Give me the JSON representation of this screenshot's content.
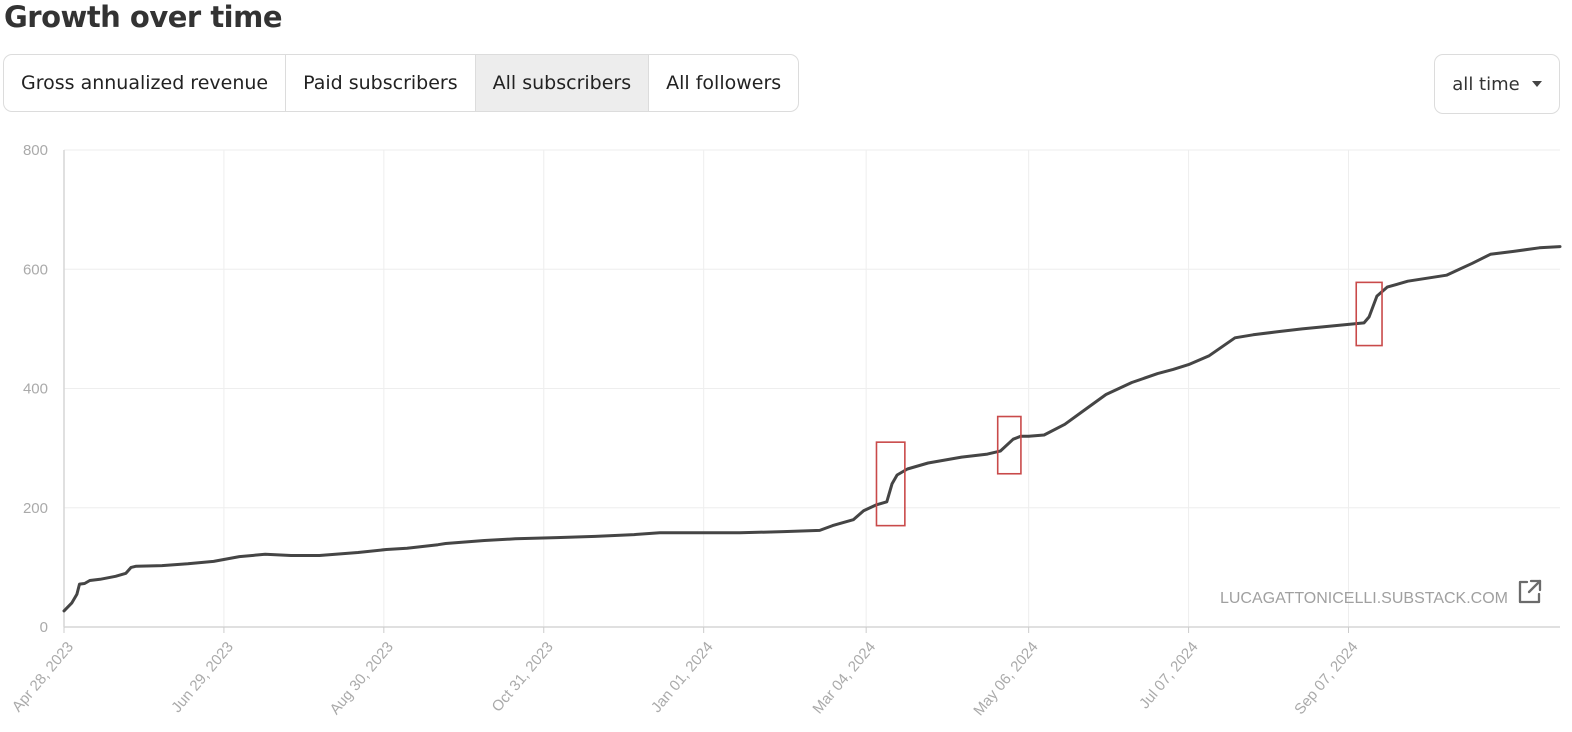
{
  "page": {
    "title": "Growth over time"
  },
  "tabs": [
    {
      "label": "Gross annualized revenue",
      "active": false
    },
    {
      "label": "Paid subscribers",
      "active": false
    },
    {
      "label": "All subscribers",
      "active": true
    },
    {
      "label": "All followers",
      "active": false
    }
  ],
  "range_select": {
    "value": "all time",
    "icon": "caret-down-icon"
  },
  "watermark": {
    "text": "LUCAGATTONICELLI.SUBSTACK.COM",
    "icon": "external-link-icon"
  },
  "colors": {
    "line": "#454545",
    "highlight": "#c94a4a",
    "grid": "#eeeeee",
    "tick_text": "#aaaaaa"
  },
  "chart_data": {
    "type": "line",
    "title": "",
    "xlabel": "",
    "ylabel": "",
    "ylim": [
      0,
      800
    ],
    "yticks": [
      0,
      200,
      400,
      600,
      800
    ],
    "xlim": [
      "2023-04-28",
      "2024-11-28"
    ],
    "xticks": [
      "2023-04-28",
      "2023-06-29",
      "2023-08-30",
      "2023-10-31",
      "2024-01-01",
      "2024-03-04",
      "2024-05-06",
      "2024-07-07",
      "2024-09-07"
    ],
    "xtick_labels": [
      "Apr 28, 2023",
      "Jun 29, 2023",
      "Aug 30, 2023",
      "Oct 31, 2023",
      "Jan 01, 2024",
      "Mar 04, 2024",
      "May 06, 2024",
      "Jul 07, 2024",
      "Sep 07, 2024"
    ],
    "grid": true,
    "series": [
      {
        "x": [
          "2023-04-28",
          "2023-05-01",
          "2023-05-03",
          "2023-05-04",
          "2023-05-06",
          "2023-05-08",
          "2023-05-12",
          "2023-05-18",
          "2023-05-22",
          "2023-05-24",
          "2023-05-26",
          "2023-06-05",
          "2023-06-15",
          "2023-06-25",
          "2023-07-05",
          "2023-07-15",
          "2023-07-25",
          "2023-08-05",
          "2023-08-20",
          "2023-08-31",
          "2023-09-08",
          "2023-09-20",
          "2023-09-23",
          "2023-10-08",
          "2023-10-20",
          "2023-11-05",
          "2023-11-20",
          "2023-12-05",
          "2023-12-15",
          "2024-01-01",
          "2024-01-15",
          "2024-02-01",
          "2024-02-15",
          "2024-02-20",
          "2024-02-28",
          "2024-03-03",
          "2024-03-08",
          "2024-03-12",
          "2024-03-14",
          "2024-03-16",
          "2024-03-20",
          "2024-03-28",
          "2024-04-10",
          "2024-04-20",
          "2024-04-25",
          "2024-04-30",
          "2024-05-03",
          "2024-05-06",
          "2024-05-12",
          "2024-05-20",
          "2024-05-28",
          "2024-06-05",
          "2024-06-15",
          "2024-06-25",
          "2024-07-01",
          "2024-07-07",
          "2024-07-15",
          "2024-07-25",
          "2024-08-01",
          "2024-08-10",
          "2024-08-20",
          "2024-09-01",
          "2024-09-13",
          "2024-09-15",
          "2024-09-18",
          "2024-09-22",
          "2024-09-30",
          "2024-10-15",
          "2024-10-20",
          "2024-10-25",
          "2024-11-01",
          "2024-11-10",
          "2024-11-20",
          "2024-11-28"
        ],
        "y": [
          27,
          40,
          55,
          72,
          73,
          78,
          80,
          85,
          90,
          100,
          102,
          103,
          106,
          110,
          118,
          122,
          120,
          120,
          125,
          130,
          132,
          138,
          140,
          145,
          148,
          150,
          152,
          155,
          158,
          158,
          158,
          160,
          162,
          170,
          180,
          195,
          205,
          210,
          240,
          255,
          265,
          275,
          285,
          290,
          295,
          315,
          320,
          320,
          322,
          340,
          365,
          390,
          410,
          425,
          432,
          440,
          455,
          485,
          490,
          495,
          500,
          505,
          510,
          520,
          555,
          570,
          580,
          590,
          600,
          610,
          625,
          630,
          636,
          638
        ]
      }
    ],
    "highlights": [
      {
        "x0": "2024-03-08",
        "x1": "2024-03-19",
        "y0": 170,
        "y1": 310
      },
      {
        "x0": "2024-04-24",
        "x1": "2024-05-03",
        "y0": 257,
        "y1": 353
      },
      {
        "x0": "2024-09-10",
        "x1": "2024-09-20",
        "y0": 472,
        "y1": 578
      }
    ]
  }
}
